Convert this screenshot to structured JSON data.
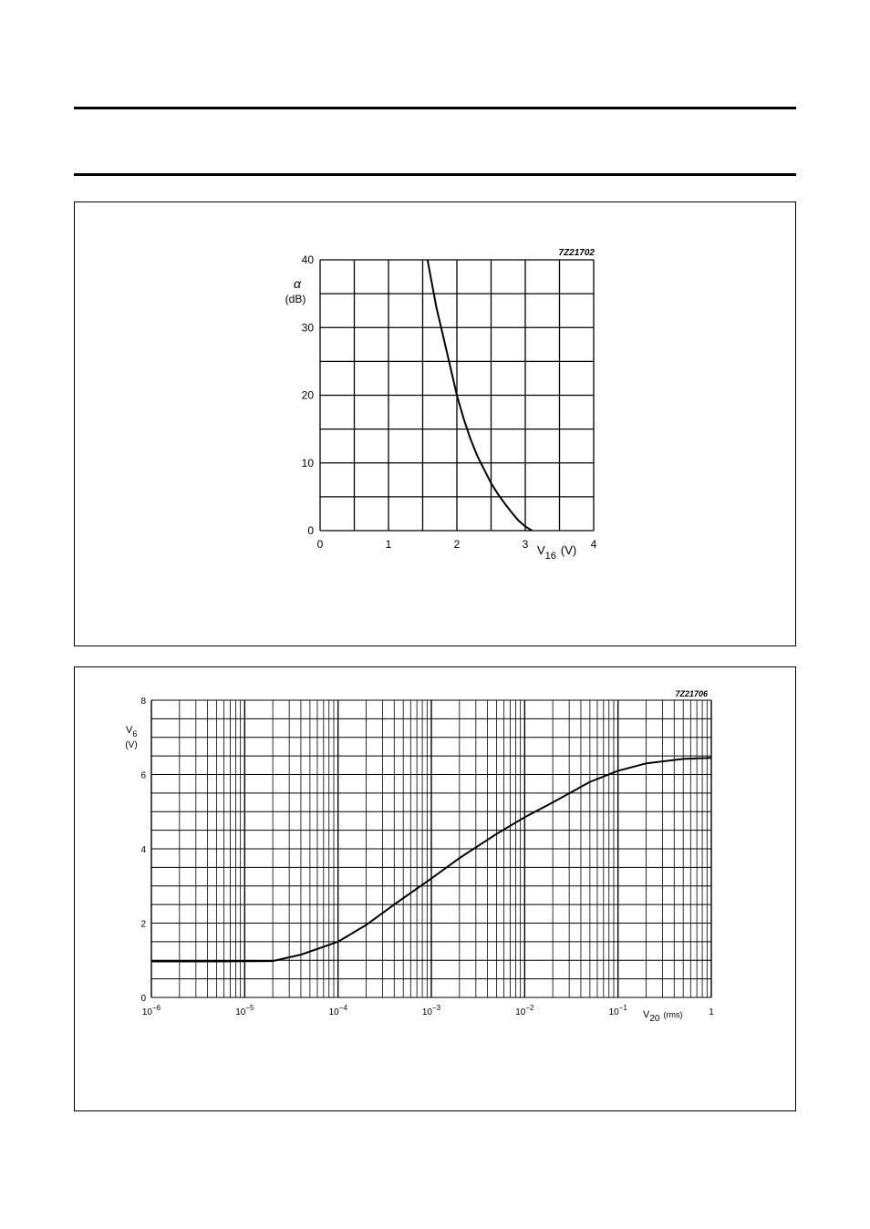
{
  "page": {
    "figures": [
      {
        "code": "7Z21702",
        "chart_ref": 0
      },
      {
        "code": "7Z21706",
        "chart_ref": 1
      }
    ]
  },
  "chart_data": [
    {
      "type": "line",
      "title": "",
      "code": "7Z21702",
      "xlabel": {
        "main": "V",
        "sub": "16",
        "unit": "(V)"
      },
      "ylabel": {
        "main": "α",
        "unit": "(dB)"
      },
      "xlim": [
        0,
        4
      ],
      "ylim": [
        0,
        40
      ],
      "x_ticks": [
        {
          "value": 0,
          "label": "0"
        },
        {
          "value": 1,
          "label": "1"
        },
        {
          "value": 2,
          "label": "2"
        },
        {
          "value": 3,
          "label": "3"
        },
        {
          "value": 4,
          "label": "4"
        }
      ],
      "y_ticks": [
        {
          "value": 0,
          "label": "0"
        },
        {
          "value": 10,
          "label": "10"
        },
        {
          "value": 20,
          "label": "20"
        },
        {
          "value": 30,
          "label": "30"
        },
        {
          "value": 40,
          "label": "40"
        }
      ],
      "grid": true,
      "x_grid_step": 0.5,
      "y_grid_step": 5,
      "series": [
        {
          "x": [
            1.57,
            1.7,
            1.85,
            2.0,
            2.1,
            2.2,
            2.3,
            2.4,
            2.5,
            2.6,
            2.7,
            2.8,
            2.9,
            3.0,
            3.1
          ],
          "y": [
            40,
            33,
            26.5,
            20,
            16.5,
            13.5,
            11,
            9,
            7,
            5.4,
            4,
            2.7,
            1.5,
            0.6,
            0
          ]
        }
      ]
    },
    {
      "type": "line",
      "title": "",
      "code": "7Z21706",
      "x_scale": "log",
      "xlabel": {
        "main": "V",
        "sub": "20",
        "unit": "(rms)"
      },
      "ylabel": {
        "main": "V",
        "sub": "6",
        "unit": "(V)"
      },
      "xlim": [
        1e-06,
        1
      ],
      "ylim": [
        0,
        8
      ],
      "x_ticks": [
        {
          "value": 1e-06,
          "base": "10",
          "exp": "−6"
        },
        {
          "value": 1e-05,
          "base": "10",
          "exp": "−5"
        },
        {
          "value": 0.0001,
          "base": "10",
          "exp": "−4"
        },
        {
          "value": 0.001,
          "base": "10",
          "exp": "−3"
        },
        {
          "value": 0.01,
          "base": "10",
          "exp": "−2"
        },
        {
          "value": 0.1,
          "base": "10",
          "exp": "−1"
        },
        {
          "value": 1,
          "base": "1",
          "exp": ""
        }
      ],
      "y_ticks": [
        {
          "value": 0,
          "label": "0"
        },
        {
          "value": 2,
          "label": "2"
        },
        {
          "value": 4,
          "label": "4"
        },
        {
          "value": 6,
          "label": "6"
        },
        {
          "value": 8,
          "label": "8"
        }
      ],
      "grid": true,
      "y_grid_step": 0.5,
      "series": [
        {
          "x": [
            1e-06,
            5e-06,
            2e-05,
            4e-05,
            0.0001,
            0.0002,
            0.0004,
            0.001,
            0.002,
            0.005,
            0.01,
            0.02,
            0.05,
            0.1,
            0.2,
            0.5,
            1
          ],
          "y": [
            0.97,
            0.97,
            0.98,
            1.15,
            1.5,
            1.95,
            2.5,
            3.2,
            3.75,
            4.4,
            4.85,
            5.25,
            5.8,
            6.1,
            6.3,
            6.42,
            6.45
          ]
        }
      ]
    }
  ]
}
